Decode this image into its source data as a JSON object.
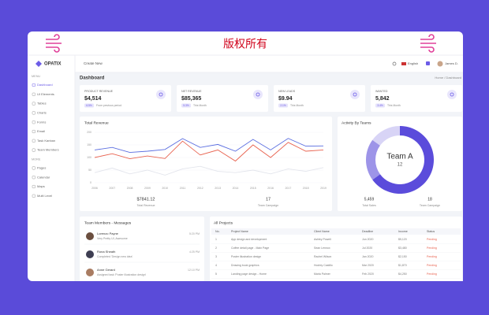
{
  "banner": {
    "title": "版权所有"
  },
  "sidebar": {
    "brand": "OPATIX",
    "sections": [
      {
        "heading": "MENU",
        "items": [
          "Dashboard",
          "UI Elements",
          "Tables",
          "Charts",
          "Forms",
          "Email",
          "Task Kanban",
          "Team Members"
        ]
      },
      {
        "heading": "MORE",
        "items": [
          "Pages",
          "Calendar",
          "Maps",
          "Multi Level"
        ]
      }
    ]
  },
  "topbar": {
    "search": "Create New",
    "language": "English",
    "user": "James D."
  },
  "page": {
    "title": "Dashboard",
    "breadcrumb": "Home / Dashboard"
  },
  "stats": [
    {
      "label": "PRODUCT REVENUE",
      "value": "$4,514",
      "delta": "6.5%",
      "note": "From previous period"
    },
    {
      "label": "NET REVENUE",
      "value": "$85,365",
      "delta": "5.3%",
      "note": "This Month"
    },
    {
      "label": "NEW LEADS",
      "value": "$9.94",
      "delta": "2.1%",
      "note": "This Month"
    },
    {
      "label": "WANTED",
      "value": "5,842",
      "delta": "3.4%",
      "note": "This Month"
    }
  ],
  "revenue_chart": {
    "type": "line",
    "title": "Total Revenue",
    "categories": [
      "2006",
      "2007",
      "2008",
      "2009",
      "2010",
      "2011",
      "2012",
      "2013",
      "2014",
      "2015",
      "2016",
      "2017",
      "2018",
      "2019"
    ],
    "ylim": [
      0,
      200
    ],
    "yticks": [
      0,
      50,
      100,
      150,
      200
    ],
    "series": [
      {
        "color": "#5b6ee0",
        "values": [
          130,
          140,
          120,
          125,
          132,
          175,
          140,
          152,
          125,
          172,
          130,
          176,
          145,
          146
        ]
      },
      {
        "color": "#e8624f",
        "values": [
          100,
          115,
          95,
          106,
          96,
          165,
          110,
          130,
          86,
          150,
          100,
          160,
          125,
          130
        ]
      },
      {
        "color": "#e3e5ec",
        "values": [
          40,
          58,
          35,
          50,
          30,
          55,
          65,
          45,
          40,
          50,
          35,
          55,
          45,
          60
        ]
      }
    ],
    "footer": [
      {
        "value": "$7841.12",
        "label": "Total Revenue"
      },
      {
        "value": "17",
        "label": "Team Campaign"
      }
    ]
  },
  "activity_chart": {
    "type": "donut",
    "title": "Activity By Teams",
    "center_title": "Team A",
    "center_value": "12",
    "values": [
      65,
      20,
      15
    ],
    "colors": [
      "#5b4cdb",
      "#9d94e8",
      "#d8d4f6"
    ],
    "footer": [
      {
        "value": "5,459",
        "label": "Total Sales"
      },
      {
        "value": "18",
        "label": "Team Campaign"
      }
    ]
  },
  "messages": {
    "title": "Team Members - Messages",
    "items": [
      {
        "name": "Lorenzo Payne",
        "text": "Very Pretty UI, Awesome",
        "time": "5:20 PM"
      },
      {
        "name": "Rona Sheath",
        "text": "Completed 'Design new idea'",
        "time": "4:25 PM"
      },
      {
        "name": "Anne Gerard",
        "text": "Assigned task 'Poster illustration design'",
        "time": "12:10 PM"
      }
    ]
  },
  "projects": {
    "title": "All Projects",
    "headers": [
      "No.",
      "Project Name",
      "Client Name",
      "Deadline",
      "Income",
      "Status"
    ],
    "rows": [
      [
        "1",
        "App design and development",
        "Ashley Powell",
        "Jun 2020",
        "$5,120",
        "Pending"
      ],
      [
        "2",
        "Coffee detail page - Main Page",
        "Sean Lennox",
        "Jul 2020",
        "$3,480",
        "Pending"
      ],
      [
        "3",
        "Poster illustration design",
        "Rachel Wilson",
        "Jan 2020",
        "$2,150",
        "Pending"
      ],
      [
        "4",
        "Drawing book graphics",
        "Hodrey Castillo",
        "Mar 2020",
        "$1,870",
        "Pending"
      ],
      [
        "5",
        "Landing page design - Home",
        "Maria Palmer",
        "Feb 2020",
        "$4,250",
        "Pending"
      ]
    ]
  }
}
